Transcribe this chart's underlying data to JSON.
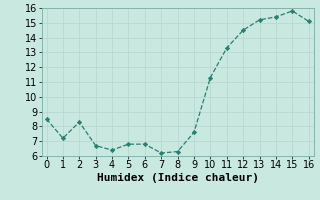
{
  "x": [
    0,
    1,
    2,
    3,
    4,
    5,
    6,
    7,
    8,
    9,
    10,
    11,
    12,
    13,
    14,
    15,
    16
  ],
  "y": [
    8.5,
    7.2,
    8.3,
    6.7,
    6.4,
    6.8,
    6.8,
    6.2,
    6.3,
    7.6,
    11.3,
    13.3,
    14.5,
    15.2,
    15.4,
    15.8,
    15.1
  ],
  "xlabel": "Humidex (Indice chaleur)",
  "ylim": [
    6,
    16
  ],
  "xlim": [
    -0.3,
    16.3
  ],
  "yticks": [
    6,
    7,
    8,
    9,
    10,
    11,
    12,
    13,
    14,
    15,
    16
  ],
  "xticks": [
    0,
    1,
    2,
    3,
    4,
    5,
    6,
    7,
    8,
    9,
    10,
    11,
    12,
    13,
    14,
    15,
    16
  ],
  "line_color": "#2a7f72",
  "marker_color": "#2a7f72",
  "bg_color": "#c8e8e0",
  "grid_color": "#b8d8d0",
  "xlabel_fontsize": 8,
  "tick_fontsize": 7
}
